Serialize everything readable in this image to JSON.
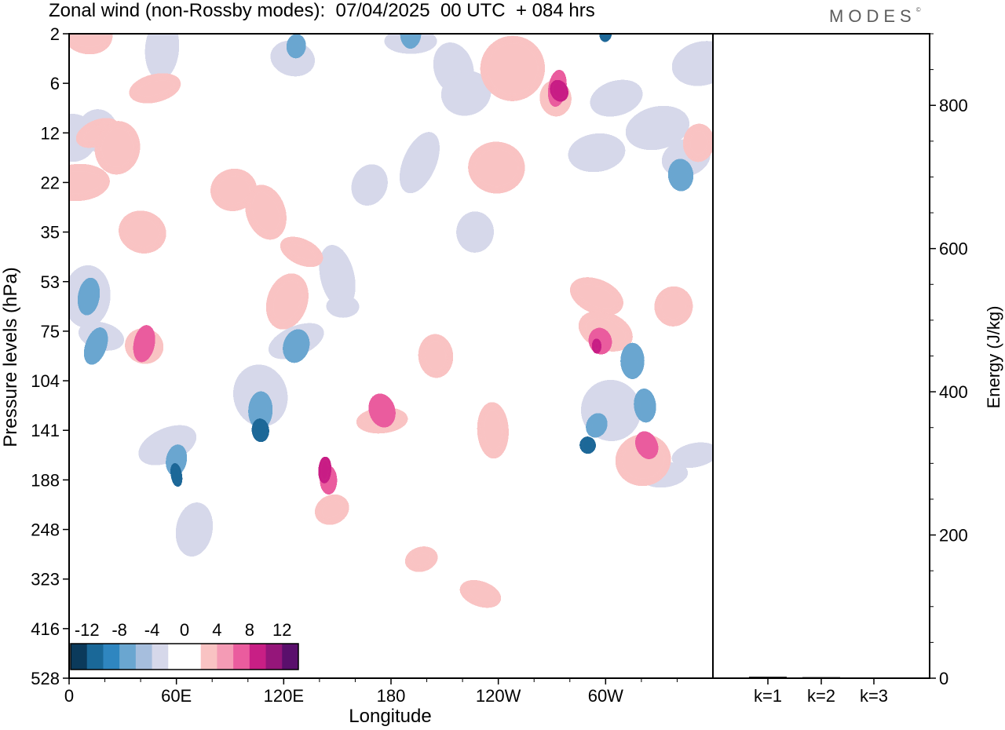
{
  "header": {
    "title": "Zonal wind (non-Rossby modes):  07/04/2025  00 UTC  + 084 hrs",
    "logo": "MODES",
    "logo_mark": "©"
  },
  "chart_data": [
    {
      "type": "heatmap",
      "title": "Zonal wind (non-Rossby modes):  07/04/2025  00 UTC  + 084 hrs",
      "xlabel": "Longitude",
      "ylabel": "Pressure levels (hPa)",
      "x_tick_labels": [
        "0",
        "60E",
        "120E",
        "180",
        "120W",
        "60W"
      ],
      "x_ticks_deg": [
        0,
        60,
        120,
        180,
        240,
        300
      ],
      "xlim_deg": [
        0,
        360
      ],
      "y_levels": [
        2,
        6,
        12,
        22,
        35,
        53,
        75,
        104,
        141,
        188,
        248,
        323,
        416,
        528
      ],
      "y_scale": "categorical-levels",
      "colorbar": {
        "tick_labels": [
          "-12",
          "-8",
          "-4",
          "0",
          "4",
          "8",
          "12"
        ],
        "colors": [
          "#0b3a5b",
          "#1a6898",
          "#2f86c0",
          "#6aa6d0",
          "#a6bedd",
          "#d6d8ea",
          "#ffffff",
          "#ffffff",
          "#f9c3c3",
          "#f49bb5",
          "#ea5c9e",
          "#c81f85",
          "#95167a",
          "#5a0f6c"
        ],
        "placement": "bottom-left inside plot"
      },
      "regions": [
        {
          "value": -4,
          "lon": 2,
          "lev": 2.1
        },
        {
          "value": -4,
          "lon": 16,
          "lev": 1.95
        },
        {
          "value": -4,
          "lon": 52,
          "lev": 0.3
        },
        {
          "value": -4,
          "lon": 125,
          "lev": 0.5
        },
        {
          "value": -8,
          "lon": 127,
          "lev": 0.25
        },
        {
          "value": -4,
          "lon": 191,
          "lev": 0.15
        },
        {
          "value": -8,
          "lon": 191,
          "lev": 0.0
        },
        {
          "value": -4,
          "lon": 215,
          "lev": 0.7
        },
        {
          "value": -4,
          "lon": 222,
          "lev": 1.2
        },
        {
          "value": -4,
          "lon": 196,
          "lev": 2.6
        },
        {
          "value": -4,
          "lon": 168,
          "lev": 3.05
        },
        {
          "value": -4,
          "lon": 227,
          "lev": 4.0
        },
        {
          "value": -4,
          "lon": 306,
          "lev": 1.3
        },
        {
          "value": -4,
          "lon": 329,
          "lev": 1.9
        },
        {
          "value": -4,
          "lon": 345,
          "lev": 2.5
        },
        {
          "value": -8,
          "lon": 342,
          "lev": 2.85
        },
        {
          "value": -4,
          "lon": 295,
          "lev": 2.4
        },
        {
          "value": -4,
          "lon": 150,
          "lev": 4.9
        },
        {
          "value": -4,
          "lon": 354,
          "lev": 0.6
        },
        {
          "value": 4,
          "lon": 10,
          "lev": 0.0
        },
        {
          "value": 4,
          "lon": 48,
          "lev": 1.1
        },
        {
          "value": 4,
          "lon": 16,
          "lev": 2.0
        },
        {
          "value": 4,
          "lon": 27,
          "lev": 2.3
        },
        {
          "value": 4,
          "lon": 5,
          "lev": 3.0
        },
        {
          "value": 4,
          "lon": 41,
          "lev": 4.0
        },
        {
          "value": 4,
          "lon": 92,
          "lev": 3.15
        },
        {
          "value": 4,
          "lon": 110,
          "lev": 3.6
        },
        {
          "value": 4,
          "lon": 122,
          "lev": 5.4
        },
        {
          "value": 4,
          "lon": 248,
          "lev": 0.7
        },
        {
          "value": 4,
          "lon": 239,
          "lev": 2.7
        },
        {
          "value": 4,
          "lon": 272,
          "lev": 1.3
        },
        {
          "value": 8,
          "lon": 273,
          "lev": 1.1
        },
        {
          "value": 12,
          "lon": 274,
          "lev": 1.15
        },
        {
          "value": 4,
          "lon": 338,
          "lev": 5.5
        },
        {
          "value": 4,
          "lon": 295,
          "lev": 5.3
        },
        {
          "value": 4,
          "lon": 352,
          "lev": 2.2
        },
        {
          "value": 4,
          "lon": 130,
          "lev": 4.4
        },
        {
          "value": -12,
          "lon": 300,
          "lev": 0.0
        },
        {
          "value": -4,
          "lon": 10,
          "lev": 5.3
        },
        {
          "value": -8,
          "lon": 11,
          "lev": 5.3
        },
        {
          "value": -4,
          "lon": 18,
          "lev": 6.1
        },
        {
          "value": -8,
          "lon": 15,
          "lev": 6.3
        },
        {
          "value": -4,
          "lon": 55,
          "lev": 8.3
        },
        {
          "value": -8,
          "lon": 60,
          "lev": 8.6
        },
        {
          "value": -12,
          "lon": 60,
          "lev": 8.9
        },
        {
          "value": -4,
          "lon": 70,
          "lev": 10.0
        },
        {
          "value": -4,
          "lon": 107,
          "lev": 7.3
        },
        {
          "value": -8,
          "lon": 107,
          "lev": 7.6
        },
        {
          "value": -12,
          "lon": 107,
          "lev": 8.0
        },
        {
          "value": -4,
          "lon": 127,
          "lev": 6.2
        },
        {
          "value": -8,
          "lon": 127,
          "lev": 6.3
        },
        {
          "value": -4,
          "lon": 153,
          "lev": 5.5
        },
        {
          "value": -4,
          "lon": 303,
          "lev": 7.6
        },
        {
          "value": -8,
          "lon": 295,
          "lev": 7.9
        },
        {
          "value": -12,
          "lon": 290,
          "lev": 8.3
        },
        {
          "value": -8,
          "lon": 322,
          "lev": 7.5
        },
        {
          "value": -8,
          "lon": 315,
          "lev": 6.6
        },
        {
          "value": -4,
          "lon": 350,
          "lev": 8.5
        },
        {
          "value": -4,
          "lon": 333,
          "lev": 8.9
        },
        {
          "value": 4,
          "lon": 42,
          "lev": 6.3
        },
        {
          "value": 8,
          "lon": 42,
          "lev": 6.25
        },
        {
          "value": 4,
          "lon": 147,
          "lev": 9.6
        },
        {
          "value": 8,
          "lon": 145,
          "lev": 9.0
        },
        {
          "value": 12,
          "lon": 143,
          "lev": 8.8
        },
        {
          "value": 4,
          "lon": 175,
          "lev": 7.8
        },
        {
          "value": 8,
          "lon": 175,
          "lev": 7.6
        },
        {
          "value": 4,
          "lon": 205,
          "lev": 6.5
        },
        {
          "value": 4,
          "lon": 237,
          "lev": 8.0
        },
        {
          "value": 4,
          "lon": 300,
          "lev": 6.0
        },
        {
          "value": 8,
          "lon": 297,
          "lev": 6.2
        },
        {
          "value": 12,
          "lon": 295,
          "lev": 6.3
        },
        {
          "value": 4,
          "lon": 321,
          "lev": 8.6
        },
        {
          "value": 8,
          "lon": 323,
          "lev": 8.3
        },
        {
          "value": 4,
          "lon": 230,
          "lev": 11.3
        },
        {
          "value": 4,
          "lon": 197,
          "lev": 10.6
        }
      ]
    },
    {
      "type": "bar",
      "categories": [
        "k=1",
        "k=2",
        "k=3"
      ],
      "values": [
        2,
        1.5,
        1
      ],
      "ylabel": "Energy (J/kg)",
      "ylim": [
        0,
        900
      ],
      "y_ticks": [
        0,
        200,
        400,
        600,
        800
      ],
      "y_tick_labels": [
        "0",
        "200",
        "400",
        "600",
        "800"
      ]
    }
  ],
  "labels": {
    "y_left": "Pressure levels (hPa)",
    "y_right": "Energy (J/kg)",
    "x": "Longitude"
  }
}
